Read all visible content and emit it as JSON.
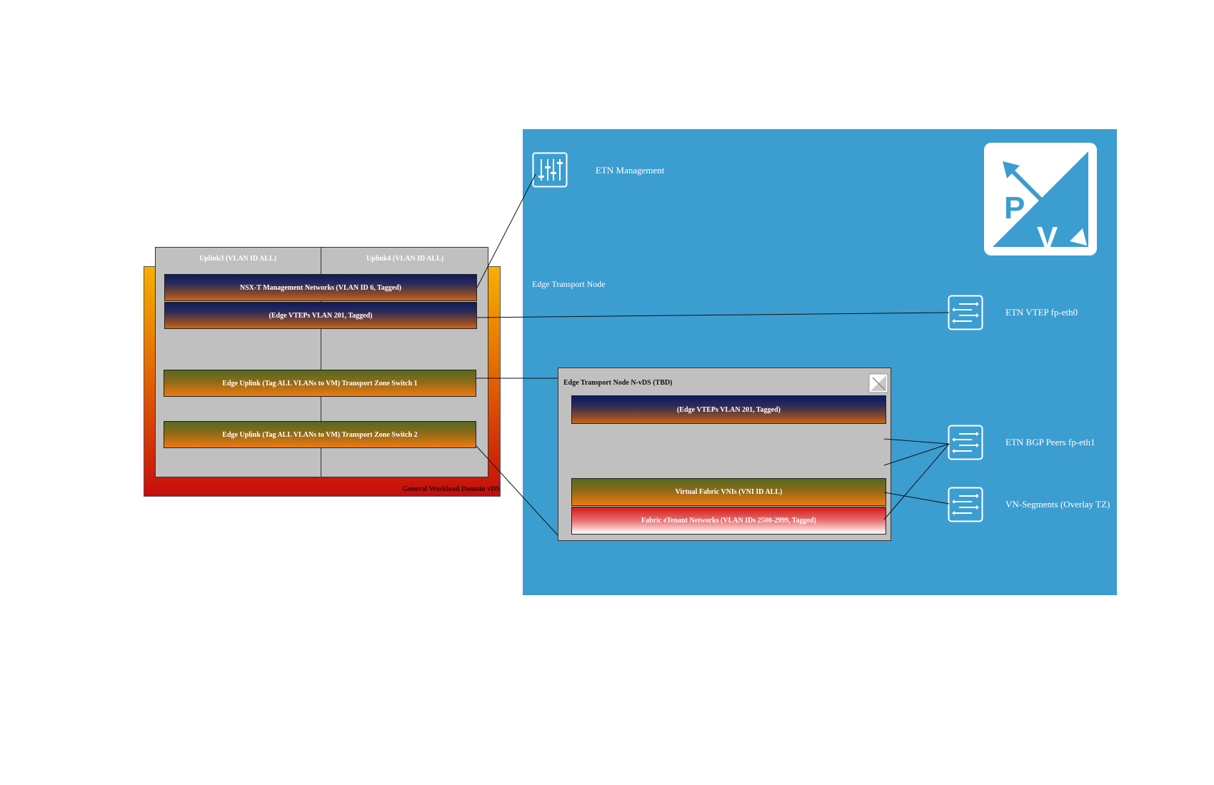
{
  "vds": {
    "label": "General Workload Domain vDS",
    "uplinks": [
      "Uplink3 (VLAN ID ALL)",
      "Uplink4 (VLAN ID ALL)"
    ],
    "portgroups": [
      "NSX-T Management Networks (VLAN ID 6, Tagged)",
      "(Edge VTEPs VLAN 201, Tagged)",
      "Edge Uplink (Tag ALL VLANs to VM) Transport Zone Switch 1",
      "Edge Uplink (Tag ALL VLANs to VM) Transport Zone Switch 2"
    ]
  },
  "etn": {
    "label": "Edge Transport Node",
    "management_label": "ETN Management",
    "vtep_label": "ETN VTEP fp-eth0",
    "bgp_label": "ETN BGP Peers fp-eth1",
    "segments_label": "VN-Segments (Overlay TZ)",
    "logo_letters": [
      "P",
      "V"
    ],
    "panel_color": "#3c9dd0"
  },
  "nvds": {
    "label": "Edge Transport Node N-vDS (TBD)",
    "portgroups": [
      "(Edge VTEPs VLAN 201, Tagged)",
      "Virtual Fabric VNIs (VNI ID ALL)",
      "Fabric eTenant Networks (VLAN IDs 2500-2999, Tagged)"
    ]
  },
  "icons": [
    "settings-sliders-icon",
    "p2v-logo-icon",
    "switch-icon"
  ]
}
